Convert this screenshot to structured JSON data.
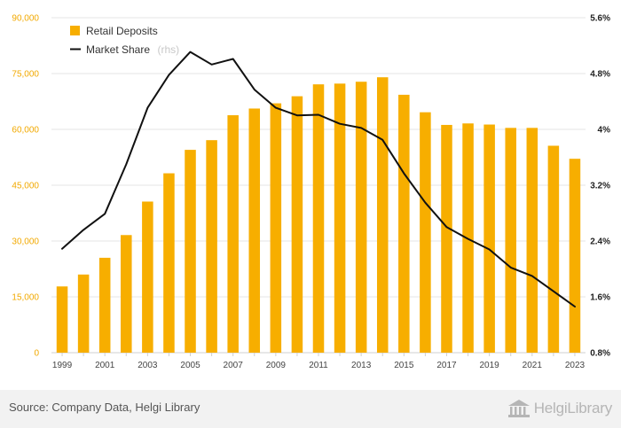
{
  "chart_data": {
    "type": "bar+line",
    "categories": [
      "1999",
      "2000",
      "2001",
      "2002",
      "2003",
      "2004",
      "2005",
      "2006",
      "2007",
      "2008",
      "2009",
      "2010",
      "2011",
      "2012",
      "2013",
      "2014",
      "2015",
      "2016",
      "2017",
      "2018",
      "2019",
      "2020",
      "2021",
      "2022",
      "2023"
    ],
    "series": [
      {
        "name": "Retail Deposits",
        "type": "bar",
        "axis": "left",
        "color": "#f7ae00",
        "values": [
          17800,
          21000,
          25500,
          31600,
          40600,
          48200,
          54500,
          57100,
          63800,
          65600,
          67000,
          68900,
          72100,
          72300,
          72800,
          74000,
          69300,
          64600,
          61200,
          61600,
          61300,
          60400,
          60400,
          55600,
          52100
        ]
      },
      {
        "name": "Market Share",
        "name_note": "(rhs)",
        "type": "line",
        "axis": "right",
        "color": "#111111",
        "values": [
          2.29,
          2.56,
          2.79,
          3.5,
          4.31,
          4.78,
          5.11,
          4.93,
          5.01,
          4.57,
          4.31,
          4.2,
          4.21,
          4.08,
          4.02,
          3.85,
          3.37,
          2.95,
          2.6,
          2.43,
          2.28,
          2.02,
          1.9,
          1.68,
          1.46
        ]
      }
    ],
    "x_tick_labels": [
      "1999",
      "2001",
      "2003",
      "2005",
      "2007",
      "2009",
      "2011",
      "2013",
      "2015",
      "2017",
      "2019",
      "2021",
      "2023"
    ],
    "y_left": {
      "ylim": [
        0,
        90000
      ],
      "ticks": [
        "0",
        "15,000",
        "30,000",
        "45,000",
        "60,000",
        "75,000",
        "90,000"
      ],
      "tick_values": [
        0,
        15000,
        30000,
        45000,
        60000,
        75000,
        90000
      ],
      "tick_color": "#f2a900"
    },
    "y_right": {
      "ylim": [
        0.8,
        5.6
      ],
      "ticks": [
        "0.8%",
        "1.6%",
        "2.4%",
        "3.2%",
        "4%",
        "4.8%",
        "5.6%"
      ],
      "tick_values": [
        0.8,
        1.6,
        2.4,
        3.2,
        4.0,
        4.8,
        5.6
      ]
    },
    "grid": true,
    "legend": "top-left"
  },
  "footer": {
    "source": "Source: Company Data, Helgi Library",
    "brand": "HelgiLibrary",
    "brand_icon": "helgi-library-building-icon"
  }
}
